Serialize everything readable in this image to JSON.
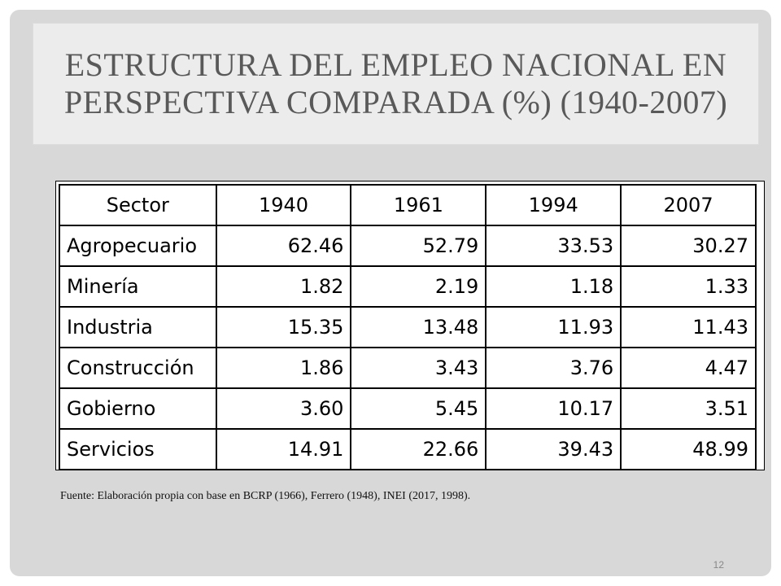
{
  "slide": {
    "title": "ESTRUCTURA DEL EMPLEO NACIONAL EN PERSPECTIVA COMPARADA (%) (1940-2007)",
    "source": "Fuente: Elaboración propia con base en BCRP (1966), Ferrero (1948), INEI (2017, 1998).",
    "page_number": "12"
  },
  "table": {
    "headers": [
      "Sector",
      "1940",
      "1961",
      "1994",
      "2007"
    ],
    "rows": [
      {
        "sector": "Agropecuario",
        "values": [
          "62.46",
          "52.79",
          "33.53",
          "30.27"
        ]
      },
      {
        "sector": "Minería",
        "values": [
          "1.82",
          "2.19",
          "1.18",
          "1.33"
        ]
      },
      {
        "sector": "Industria",
        "values": [
          "15.35",
          "13.48",
          "11.93",
          "11.43"
        ]
      },
      {
        "sector": "Construcción",
        "values": [
          "1.86",
          "3.43",
          "3.76",
          "4.47"
        ]
      },
      {
        "sector": "Gobierno",
        "values": [
          "3.60",
          "5.45",
          "10.17",
          "3.51"
        ]
      },
      {
        "sector": "Servicios",
        "values": [
          "14.91",
          "22.66",
          "39.43",
          "48.99"
        ]
      }
    ]
  }
}
